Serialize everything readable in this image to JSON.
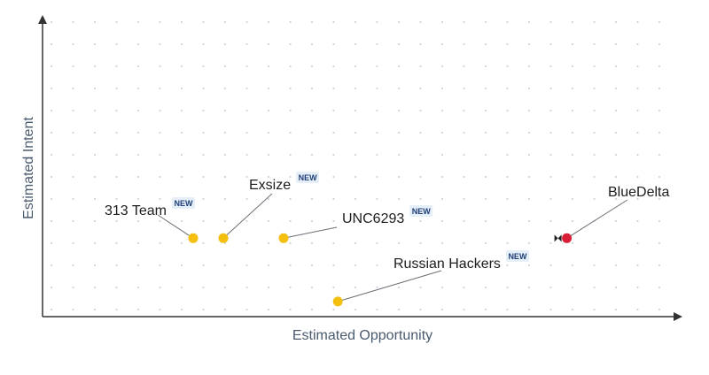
{
  "chart_data": {
    "type": "scatter",
    "xlabel": "Estimated Opportunity",
    "ylabel": "Estimated Intent",
    "grid": true,
    "xlim": [
      0,
      100
    ],
    "ylim": [
      0,
      100
    ],
    "badge_text": "NEW",
    "colors": {
      "new": "#f5bf0f",
      "highlighted": "#d81f35",
      "axis": "#333333",
      "grid_dot": "#cfd3d8",
      "badge_bg": "#e6eef7"
    },
    "points": [
      {
        "label": "313 Team",
        "x": 25,
        "y": 26,
        "is_new": true,
        "highlighted": false
      },
      {
        "label": "Exsize",
        "x": 30,
        "y": 26,
        "is_new": true,
        "highlighted": false
      },
      {
        "label": "UNC6293",
        "x": 40,
        "y": 26,
        "is_new": true,
        "highlighted": false
      },
      {
        "label": "Russian Hackers",
        "x": 49,
        "y": 5,
        "is_new": true,
        "highlighted": false
      },
      {
        "label": "BlueDelta",
        "x": 87,
        "y": 26,
        "is_new": false,
        "highlighted": true
      }
    ]
  }
}
